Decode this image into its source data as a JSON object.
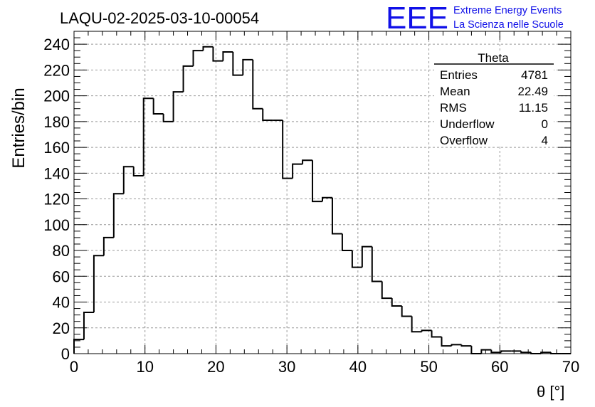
{
  "header": {
    "title": "LAQU-02-2025-03-10-00054",
    "logo_letters": "EEE",
    "logo_line1": "Extreme Energy Events",
    "logo_line2": "La Scienza nelle Scuole"
  },
  "colors": {
    "logo": "#1010e8",
    "histogram": "#000000",
    "grid": "#999999"
  },
  "stats": {
    "title": "Theta",
    "rows": [
      {
        "label": "Entries",
        "value": "4781"
      },
      {
        "label": "Mean",
        "value": "22.49"
      },
      {
        "label": "RMS",
        "value": "11.15"
      },
      {
        "label": "Underflow",
        "value": "0"
      },
      {
        "label": "Overflow",
        "value": "4"
      }
    ]
  },
  "chart_data": {
    "type": "bar",
    "histogram": true,
    "title": "LAQU-02-2025-03-10-00054",
    "xlabel": "θ [°]",
    "ylabel": "Entries/bin",
    "xlim": [
      0,
      70
    ],
    "ylim": [
      0,
      250
    ],
    "bin_width": 1.4,
    "bin_low_edges": [
      0,
      1.4,
      2.8,
      4.2,
      5.6,
      7.0,
      8.4,
      9.8,
      11.2,
      12.6,
      14.0,
      15.4,
      16.8,
      18.2,
      19.6,
      21.0,
      22.4,
      23.8,
      25.2,
      26.6,
      28.0,
      29.4,
      30.8,
      32.2,
      33.6,
      35.0,
      36.4,
      37.8,
      39.2,
      40.6,
      42.0,
      43.4,
      44.8,
      46.2,
      47.6,
      49.0,
      50.4,
      51.8,
      53.2,
      54.6,
      56.0,
      57.4,
      58.8,
      60.2,
      61.6,
      63.0,
      64.4,
      65.8,
      67.2,
      68.6
    ],
    "values": [
      11,
      32,
      76,
      90,
      124,
      145,
      138,
      198,
      186,
      180,
      203,
      223,
      235,
      238,
      227,
      234,
      216,
      228,
      190,
      181,
      181,
      136,
      147,
      150,
      118,
      121,
      93,
      80,
      67,
      83,
      56,
      43,
      37,
      29,
      17,
      18,
      13,
      6,
      7,
      6,
      0,
      3,
      1,
      2,
      2,
      1,
      0,
      1,
      0,
      0
    ],
    "xticks": [
      0,
      10,
      20,
      30,
      40,
      50,
      60,
      70
    ],
    "yticks": [
      0,
      20,
      40,
      60,
      80,
      100,
      120,
      140,
      160,
      180,
      200,
      220,
      240
    ],
    "grid": true,
    "legend": "top-right"
  }
}
